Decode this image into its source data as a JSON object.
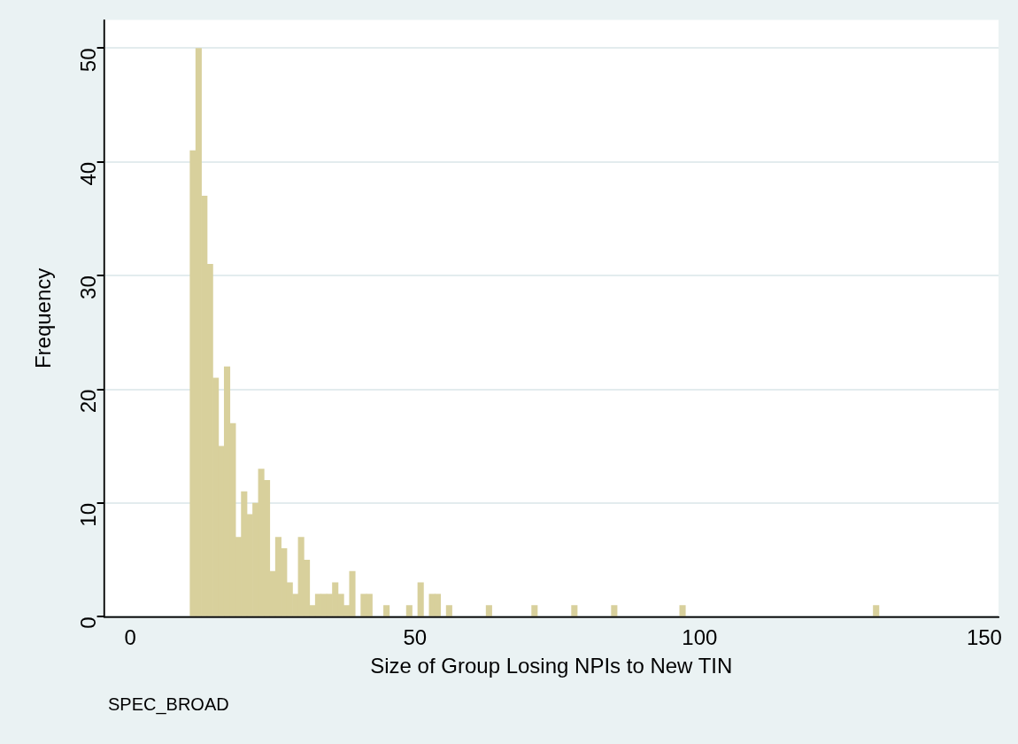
{
  "chart_data": {
    "type": "histogram",
    "xlabel": "Size of Group Losing NPIs to New TIN",
    "ylabel": "Frequency",
    "annotations": [
      "SPEC_BROAD"
    ],
    "bins": [
      10.5,
      11.5,
      12.5,
      13.5,
      14.5,
      15.5,
      16.5,
      17.5,
      18.5,
      19.5,
      20.5,
      21.5,
      22.5,
      23.5,
      24.5,
      25.5,
      26.5,
      27.5,
      28.5,
      29.5,
      30.5,
      31.5,
      32.5,
      33.5,
      34.5,
      35.5,
      36.5,
      37.5,
      38.5,
      39.5,
      40.5,
      41.5,
      42.5,
      43.5,
      44.5,
      45.5,
      46.5,
      47.5,
      48.5,
      49.5,
      50.5,
      51.5,
      52.5,
      53.5,
      54.5,
      55.5,
      56.5,
      57.5,
      58.5,
      59.5,
      60.5,
      61.5,
      62.5,
      63.5,
      64.5,
      65.5,
      66.5,
      67.5,
      68.5,
      69.5,
      70.5,
      71.5,
      72.5,
      73.5,
      74.5,
      75.5,
      76.5,
      77.5,
      78.5,
      79.5,
      80.5,
      81.5,
      82.5,
      83.5,
      84.5,
      85.5,
      86.5,
      87.5,
      88.5,
      89.5,
      90.5,
      91.5,
      92.5,
      93.5,
      94.5,
      95.5,
      96.5,
      97.5,
      98.5,
      99.5,
      100.5,
      101.5,
      102.5,
      103.5,
      104.5,
      105.5,
      106.5,
      107.5,
      108.5,
      109.5,
      110.5,
      111.5,
      112.5,
      113.5,
      114.5,
      115.5,
      116.5,
      117.5,
      118.5,
      119.5,
      120.5,
      121.5,
      122.5,
      123.5,
      124.5,
      125.5,
      126.5,
      127.5,
      128.5,
      129.5,
      130.5,
      131.5
    ],
    "values": [
      41,
      50,
      37,
      31,
      21,
      15,
      22,
      17,
      7,
      11,
      9,
      10,
      13,
      12,
      4,
      7,
      6,
      3,
      2,
      7,
      5,
      1,
      2,
      2,
      2,
      3,
      2,
      1,
      4,
      0,
      2,
      2,
      0,
      0,
      1,
      0,
      0,
      0,
      1,
      0,
      3,
      0,
      2,
      2,
      0,
      1,
      0,
      0,
      0,
      0,
      0,
      0,
      1,
      0,
      0,
      0,
      0,
      0,
      0,
      0,
      1,
      0,
      0,
      0,
      0,
      0,
      0,
      1,
      0,
      0,
      0,
      0,
      0,
      0,
      1,
      0,
      0,
      0,
      0,
      0,
      0,
      0,
      0,
      0,
      0,
      0,
      1,
      0,
      0,
      0,
      0,
      0,
      0,
      0,
      0,
      0,
      0,
      0,
      0,
      0,
      0,
      0,
      0,
      0,
      0,
      0,
      0,
      0,
      0,
      0,
      0,
      0,
      0,
      0,
      0,
      0,
      0,
      0,
      0,
      0,
      1
    ],
    "color": "#d8d09c",
    "xlim": [
      -4.6,
      152.5
    ],
    "xticks": [
      0,
      50,
      100,
      150
    ],
    "ylim": [
      0,
      52.5
    ],
    "yticks": [
      0,
      10,
      20,
      30,
      40,
      50
    ],
    "grid": "y",
    "legend": false
  }
}
